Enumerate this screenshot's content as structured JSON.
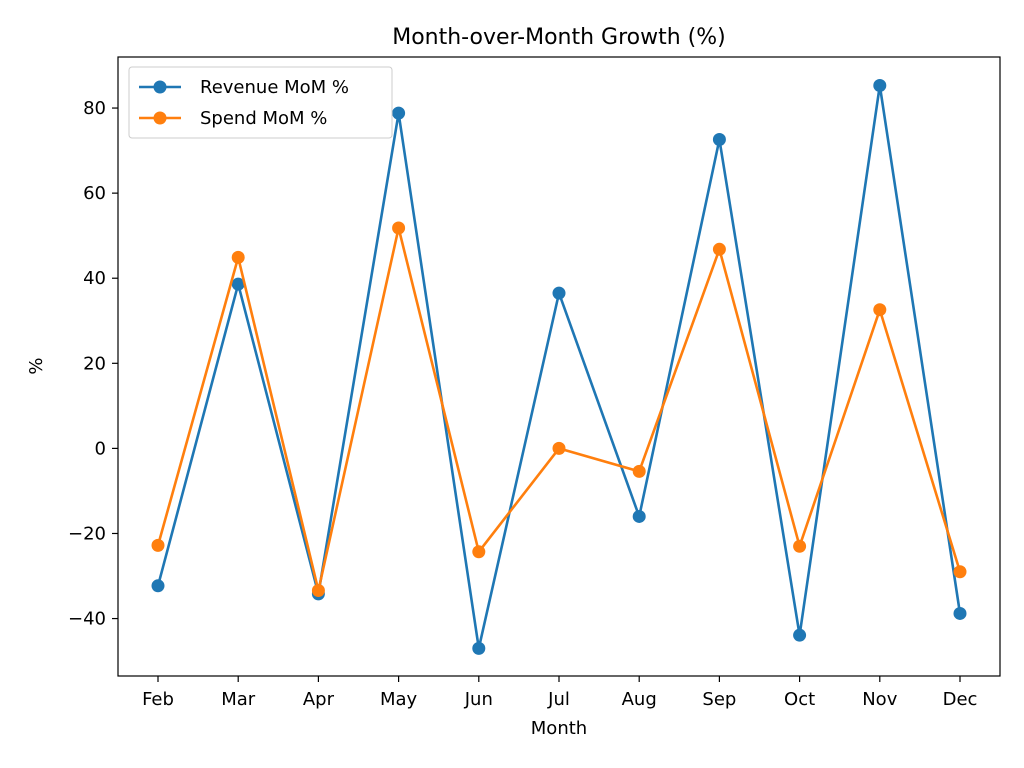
{
  "chart_data": {
    "type": "line",
    "title": "Month-over-Month Growth (%)",
    "xlabel": "Month",
    "ylabel": "%",
    "categories": [
      "Feb",
      "Mar",
      "Apr",
      "May",
      "Jun",
      "Jul",
      "Aug",
      "Sep",
      "Oct",
      "Nov",
      "Dec"
    ],
    "ylim": [
      -53.5,
      92.0
    ],
    "yticks": [
      -40,
      -20,
      0,
      20,
      40,
      60,
      80
    ],
    "ytick_labels": [
      "−40",
      "−20",
      "0",
      "20",
      "40",
      "60",
      "80"
    ],
    "grid": false,
    "legend_position": "top-left",
    "series": [
      {
        "name": "Revenue MoM %",
        "color": "#1f77b4",
        "marker": "circle",
        "values": [
          -32.3,
          38.6,
          -34.2,
          78.8,
          -47.0,
          36.5,
          -16.0,
          72.6,
          -43.9,
          85.3,
          -38.8
        ]
      },
      {
        "name": "Spend MoM %",
        "color": "#ff7f0e",
        "marker": "circle",
        "values": [
          -22.8,
          44.9,
          -33.4,
          51.8,
          -24.3,
          0.0,
          -5.4,
          46.8,
          -23.0,
          32.6,
          -29.0
        ]
      }
    ]
  }
}
